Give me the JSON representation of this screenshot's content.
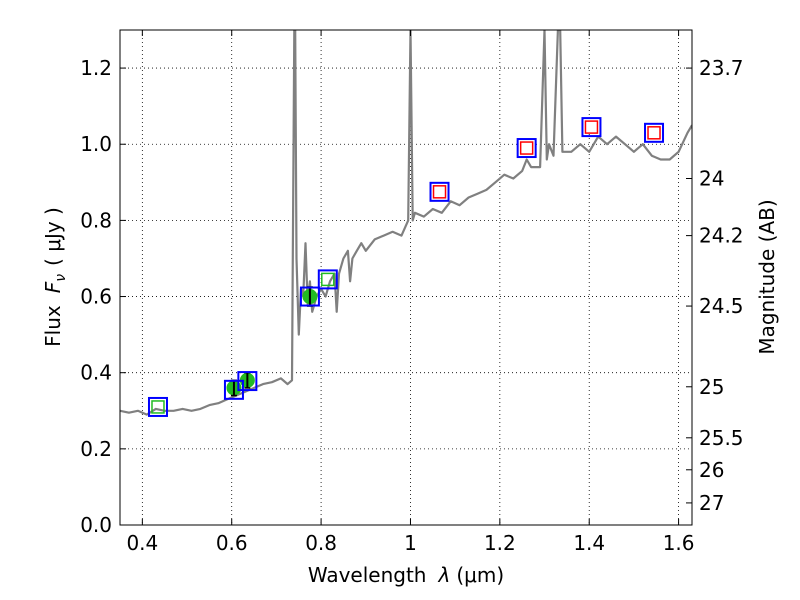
{
  "chart_data": {
    "type": "line",
    "xlabel": "Wavelength",
    "xlabel_symbol": "λ",
    "xlabel_unit": "(μm)",
    "ylabel": "Flux",
    "ylabel_symbol": "F",
    "ylabel_sub": "ν",
    "ylabel_unit": "( μJy )",
    "y2label": "Magnitude (AB)",
    "xlim": [
      0.35,
      1.63
    ],
    "ylim": [
      0.0,
      1.3
    ],
    "grid": true,
    "x_ticks": [
      0.4,
      0.6,
      0.8,
      1.0,
      1.2,
      1.4,
      1.6
    ],
    "x_tick_labels": [
      "0.4",
      "0.6",
      "0.8",
      "1",
      "1.2",
      "1.4",
      "1.6"
    ],
    "y_ticks": [
      0.0,
      0.2,
      0.4,
      0.6,
      0.8,
      1.0,
      1.2
    ],
    "y_tick_labels": [
      "0.0",
      "0.2",
      "0.4",
      "0.6",
      "0.8",
      "1.0",
      "1.2"
    ],
    "y2_ticks": [
      {
        "label": "23.7",
        "flux": 1.2
      },
      {
        "label": "24",
        "flux": 0.91
      },
      {
        "label": "24.2",
        "flux": 0.76
      },
      {
        "label": "24.5",
        "flux": 0.575
      },
      {
        "label": "25",
        "flux": 0.363
      },
      {
        "label": "25.5",
        "flux": 0.229
      },
      {
        "label": "26",
        "flux": 0.145
      },
      {
        "label": "27",
        "flux": 0.058
      }
    ],
    "series": [
      {
        "name": "model-spectrum",
        "color": "#808080",
        "x": [
          0.35,
          0.37,
          0.39,
          0.41,
          0.43,
          0.45,
          0.47,
          0.49,
          0.51,
          0.53,
          0.55,
          0.57,
          0.59,
          0.61,
          0.63,
          0.65,
          0.67,
          0.69,
          0.71,
          0.725,
          0.735,
          0.74,
          0.742,
          0.745,
          0.75,
          0.755,
          0.76,
          0.765,
          0.77,
          0.775,
          0.78,
          0.79,
          0.8,
          0.81,
          0.82,
          0.83,
          0.835,
          0.84,
          0.85,
          0.86,
          0.865,
          0.87,
          0.88,
          0.89,
          0.9,
          0.92,
          0.94,
          0.96,
          0.98,
          0.995,
          1.0,
          1.005,
          1.01,
          1.03,
          1.05,
          1.07,
          1.09,
          1.11,
          1.13,
          1.15,
          1.17,
          1.19,
          1.21,
          1.23,
          1.25,
          1.26,
          1.27,
          1.29,
          1.3,
          1.305,
          1.31,
          1.32,
          1.33,
          1.335,
          1.34,
          1.36,
          1.38,
          1.4,
          1.42,
          1.44,
          1.46,
          1.48,
          1.5,
          1.52,
          1.54,
          1.56,
          1.58,
          1.6,
          1.62,
          1.63
        ],
        "values": [
          0.3,
          0.295,
          0.3,
          0.29,
          0.305,
          0.3,
          0.3,
          0.305,
          0.3,
          0.305,
          0.315,
          0.32,
          0.33,
          0.34,
          0.35,
          0.36,
          0.37,
          0.375,
          0.385,
          0.37,
          0.38,
          1.3,
          1.3,
          0.7,
          0.5,
          0.62,
          0.6,
          0.74,
          0.58,
          0.64,
          0.56,
          0.6,
          0.62,
          0.6,
          0.64,
          0.66,
          0.56,
          0.66,
          0.7,
          0.72,
          0.64,
          0.7,
          0.72,
          0.74,
          0.72,
          0.75,
          0.76,
          0.77,
          0.76,
          0.8,
          1.3,
          0.8,
          0.82,
          0.81,
          0.83,
          0.82,
          0.85,
          0.84,
          0.86,
          0.87,
          0.88,
          0.9,
          0.92,
          0.91,
          0.93,
          0.96,
          0.94,
          0.94,
          1.3,
          0.96,
          1.0,
          0.97,
          1.3,
          1.3,
          0.98,
          0.98,
          1.0,
          0.98,
          1.02,
          1.0,
          1.02,
          1.0,
          0.98,
          1.0,
          0.97,
          0.96,
          0.96,
          0.98,
          1.03,
          1.05
        ]
      }
    ],
    "photometry_observed": {
      "name": "observed-photometry",
      "color": "#22bb22",
      "points": [
        {
          "x": 0.605,
          "y": 0.36,
          "err": 0.02
        },
        {
          "x": 0.635,
          "y": 0.38,
          "err": 0.02
        },
        {
          "x": 0.775,
          "y": 0.6,
          "err": 0.025
        }
      ]
    },
    "photometry_model": {
      "name": "model-photometry",
      "color": "#0000ff",
      "points": [
        {
          "x": 0.435,
          "y": 0.31
        },
        {
          "x": 0.605,
          "y": 0.355
        },
        {
          "x": 0.635,
          "y": 0.378
        },
        {
          "x": 0.775,
          "y": 0.6
        },
        {
          "x": 0.815,
          "y": 0.645
        },
        {
          "x": 1.065,
          "y": 0.875
        },
        {
          "x": 1.26,
          "y": 0.99
        },
        {
          "x": 1.405,
          "y": 1.045
        },
        {
          "x": 1.545,
          "y": 1.03
        }
      ]
    },
    "photometry_upper": {
      "name": "non-detection-photometry",
      "color": "#ff0000",
      "points": [
        {
          "x": 1.065,
          "y": 0.875
        },
        {
          "x": 1.26,
          "y": 0.99
        },
        {
          "x": 1.405,
          "y": 1.045
        },
        {
          "x": 1.545,
          "y": 1.03
        }
      ]
    },
    "photometry_filled": {
      "name": "filled-model-photometry",
      "color": "#22bb22",
      "points": [
        {
          "x": 0.435,
          "y": 0.31
        },
        {
          "x": 0.815,
          "y": 0.645
        }
      ]
    }
  }
}
